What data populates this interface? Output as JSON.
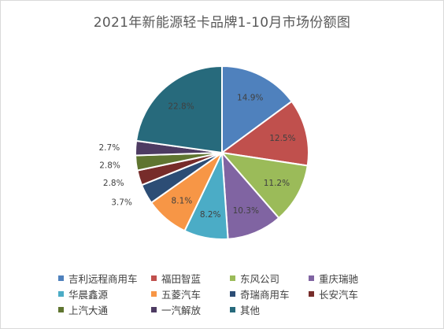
{
  "chart_data": {
    "type": "pie",
    "title": "2021年新能源轻卡品牌1-10月市场份额图",
    "legend_position": "bottom",
    "slices": [
      {
        "name": "吉利远程商用车",
        "label": "14.9%",
        "value": 14.9,
        "color": "#4f81bd"
      },
      {
        "name": "福田智蓝",
        "label": "12.5%",
        "value": 12.5,
        "color": "#c0504d"
      },
      {
        "name": "东风公司",
        "label": "11.2%",
        "value": 11.2,
        "color": "#9bbb59"
      },
      {
        "name": "重庆瑞驰",
        "label": "10.3%",
        "value": 10.3,
        "color": "#8064a2"
      },
      {
        "name": "华晨鑫源",
        "label": "8.2%",
        "value": 8.2,
        "color": "#4bacc6"
      },
      {
        "name": "五菱汽车",
        "label": "8.1%",
        "value": 8.1,
        "color": "#f79646"
      },
      {
        "name": "奇瑞商用车",
        "label": "3.7%",
        "value": 3.7,
        "color": "#2c4d75"
      },
      {
        "name": "长安汽车",
        "label": "2.8%",
        "value": 2.8,
        "color": "#772c2a"
      },
      {
        "name": "上汽大通",
        "label": "2.8%",
        "value": 2.8,
        "color": "#5f7530"
      },
      {
        "name": "一汽解放",
        "label": "2.7%",
        "value": 2.7,
        "color": "#4d3b62"
      },
      {
        "name": "其他",
        "label": "22.8%",
        "value": 22.8,
        "color": "#276a7c"
      }
    ]
  }
}
